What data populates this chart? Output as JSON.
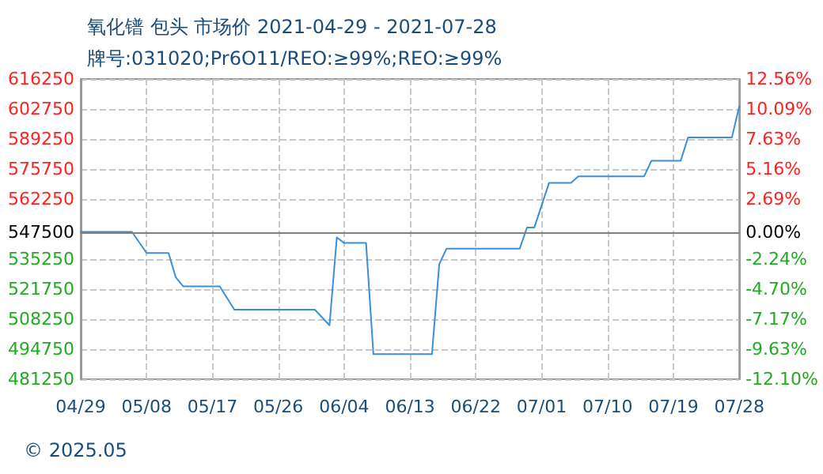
{
  "chart_data": {
    "type": "line",
    "title": "氧化镨 包头 市场价 2021-04-29 - 2021-07-28",
    "subtitle": "牌号:031020;Pr6O11/REO:≥99%;REO:≥99%",
    "x": [
      "2021-04-29",
      "2021-05-06",
      "2021-05-08",
      "2021-05-11",
      "2021-05-12",
      "2021-05-13",
      "2021-05-18",
      "2021-05-20",
      "2021-05-31",
      "2021-06-02",
      "2021-06-03",
      "2021-06-04",
      "2021-06-07",
      "2021-06-08",
      "2021-06-16",
      "2021-06-17",
      "2021-06-18",
      "2021-06-28",
      "2021-06-29",
      "2021-06-30",
      "2021-07-02",
      "2021-07-05",
      "2021-07-06",
      "2021-07-15",
      "2021-07-16",
      "2021-07-20",
      "2021-07-21",
      "2021-07-27",
      "2021-07-28"
    ],
    "series": [
      {
        "color": "#3a8fd6",
        "values": [
          547500,
          547500,
          538000,
          538000,
          527000,
          523000,
          523000,
          512500,
          512500,
          505500,
          545000,
          542500,
          542500,
          492500,
          492500,
          533000,
          540000,
          540000,
          549500,
          549500,
          569500,
          569500,
          572500,
          572500,
          579500,
          579500,
          590000,
          590000,
          604000
        ]
      }
    ],
    "xlim": [
      "2021-04-29",
      "2021-07-28"
    ],
    "xticks": [
      {
        "value": "2021-04-29",
        "label": "04/29"
      },
      {
        "value": "2021-05-08",
        "label": "05/08"
      },
      {
        "value": "2021-05-17",
        "label": "05/17"
      },
      {
        "value": "2021-05-26",
        "label": "05/26"
      },
      {
        "value": "2021-06-04",
        "label": "06/04"
      },
      {
        "value": "2021-06-13",
        "label": "06/13"
      },
      {
        "value": "2021-06-22",
        "label": "06/22"
      },
      {
        "value": "2021-07-01",
        "label": "07/01"
      },
      {
        "value": "2021-07-10",
        "label": "07/10"
      },
      {
        "value": "2021-07-19",
        "label": "07/19"
      },
      {
        "value": "2021-07-28",
        "label": "07/28"
      }
    ],
    "ylim": [
      481250,
      616250
    ],
    "yticks": [
      481250,
      494750,
      508250,
      521750,
      535250,
      547500,
      562250,
      575750,
      589250,
      602750,
      616250
    ],
    "y2lim": [
      -12.1,
      12.56
    ],
    "y2ticks": [
      {
        "value": -12.1,
        "label": "-12.10%"
      },
      {
        "value": -9.63,
        "label": "-9.63%"
      },
      {
        "value": -7.17,
        "label": "-7.17%"
      },
      {
        "value": -4.7,
        "label": "-4.70%"
      },
      {
        "value": -2.24,
        "label": "-2.24%"
      },
      {
        "value": 0,
        "label": "0.00%"
      },
      {
        "value": 2.69,
        "label": "2.69%"
      },
      {
        "value": 5.16,
        "label": "5.16%"
      },
      {
        "value": 7.63,
        "label": "7.63%"
      },
      {
        "value": 10.09,
        "label": "10.09%"
      },
      {
        "value": 12.56,
        "label": "12.56%"
      }
    ],
    "ref_lines": [
      {
        "axis": "y",
        "value": 547500,
        "color": "#808080"
      }
    ],
    "annotations": [
      "© 2025.05"
    ],
    "grid": true,
    "marker": "none",
    "line_style": "solid"
  }
}
